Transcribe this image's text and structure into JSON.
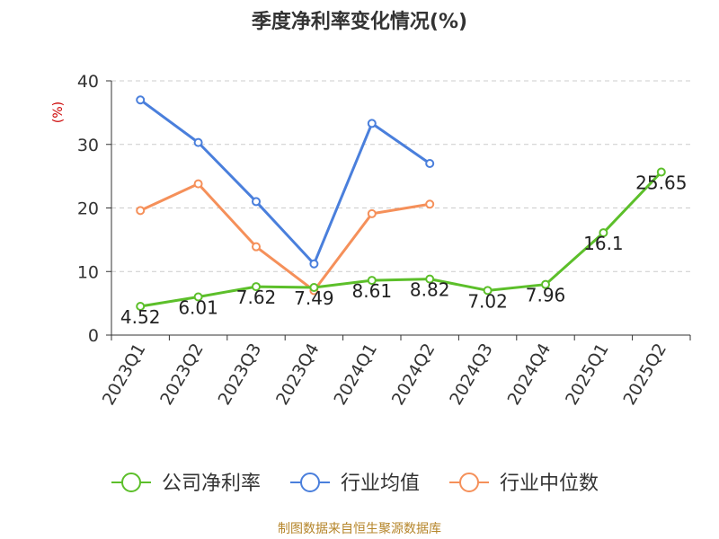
{
  "chart_data": {
    "type": "line",
    "title": "季度净利率变化情况(%)",
    "ylabel": "(%)",
    "ylim": [
      0,
      40
    ],
    "yticks": [
      0,
      10,
      20,
      30,
      40
    ],
    "grid": true,
    "legend_position": "bottom",
    "categories": [
      "2023Q1",
      "2023Q2",
      "2023Q3",
      "2023Q4",
      "2024Q1",
      "2024Q2",
      "2024Q3",
      "2024Q4",
      "2025Q1",
      "2025Q2"
    ],
    "series": [
      {
        "name": "公司净利率",
        "color": "#5cbf2a",
        "values": [
          4.52,
          6.01,
          7.62,
          7.49,
          8.61,
          8.82,
          7.02,
          7.96,
          16.1,
          25.65
        ],
        "labels": [
          "4.52",
          "6.01",
          "7.62",
          "7.49",
          "8.61",
          "8.82",
          "7.02",
          "7.96",
          "16.1",
          "25.65"
        ]
      },
      {
        "name": "行业均值",
        "color": "#4a7fdc",
        "values": [
          37.0,
          30.3,
          21.0,
          11.2,
          33.3,
          27.0,
          null,
          null,
          null,
          null
        ]
      },
      {
        "name": "行业中位数",
        "color": "#f5905a",
        "values": [
          19.6,
          23.8,
          13.9,
          7.0,
          19.1,
          20.6,
          null,
          null,
          null,
          null
        ]
      }
    ]
  },
  "source": "制图数据来自恒生聚源数据库",
  "ylabel_color": "#cc0000",
  "text_color": "#333333",
  "grid_color": "#cccccc"
}
